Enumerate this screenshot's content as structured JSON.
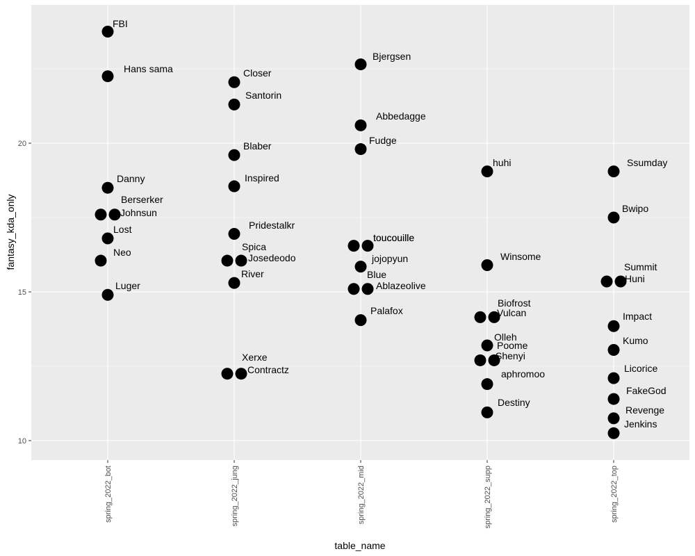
{
  "chart_data": {
    "type": "scatter",
    "xlabel": "table_name",
    "ylabel": "fantasy_kda_only",
    "categories": [
      "spring_2022_bot",
      "spring_2022_jung",
      "spring_2022_mid",
      "spring_2022_supp",
      "spring_2022_top"
    ],
    "yticks": [
      10,
      15,
      20
    ],
    "ylim": [
      9.35,
      24.6
    ],
    "grid": true,
    "background_color": "#ebebeb",
    "grid_color": "#ffffff",
    "point_color": "#000000",
    "series": [
      {
        "category": "spring_2022_bot",
        "points": [
          {
            "label": "FBI",
            "y": 23.75
          },
          {
            "label": "Hans sama",
            "y": 22.25
          },
          {
            "label": "Danny",
            "y": 18.5
          },
          {
            "label": "Berserker",
            "y": 17.6
          },
          {
            "label": "Johnsun",
            "y": 17.6
          },
          {
            "label": "Lost",
            "y": 16.8
          },
          {
            "label": "Neo",
            "y": 16.05
          },
          {
            "label": "Luger",
            "y": 14.9
          }
        ]
      },
      {
        "category": "spring_2022_jung",
        "points": [
          {
            "label": "Closer",
            "y": 22.05
          },
          {
            "label": "Santorin",
            "y": 21.3
          },
          {
            "label": "Blaber",
            "y": 19.6
          },
          {
            "label": "Inspired",
            "y": 18.55
          },
          {
            "label": "Pridestalkr",
            "y": 16.95
          },
          {
            "label": "Spica",
            "y": 16.05
          },
          {
            "label": "Josedeodo",
            "y": 16.05
          },
          {
            "label": "River",
            "y": 15.3
          },
          {
            "label": "Xerxe",
            "y": 12.25
          },
          {
            "label": "Contractz",
            "y": 12.25
          }
        ]
      },
      {
        "category": "spring_2022_mid",
        "points": [
          {
            "label": "Bjergsen",
            "y": 22.65
          },
          {
            "label": "Abbedagge",
            "y": 20.6
          },
          {
            "label": "Fudge",
            "y": 19.8
          },
          {
            "label": "toucouille",
            "y": 16.55
          },
          {
            "label": "toucouille",
            "y": 16.55
          },
          {
            "label": "jojopyun",
            "y": 15.85
          },
          {
            "label": "Blue",
            "y": 15.1
          },
          {
            "label": "Ablazeolive",
            "y": 15.1
          },
          {
            "label": "Palafox",
            "y": 14.05
          }
        ]
      },
      {
        "category": "spring_2022_supp",
        "points": [
          {
            "label": "huhi",
            "y": 19.05
          },
          {
            "label": "Winsome",
            "y": 15.9
          },
          {
            "label": "Biofrost",
            "y": 14.15
          },
          {
            "label": "Vulcan",
            "y": 14.15
          },
          {
            "label": "Olleh",
            "y": 13.2
          },
          {
            "label": "Poome",
            "y": 12.7
          },
          {
            "label": "Shenyi",
            "y": 12.7
          },
          {
            "label": "aphromoo",
            "y": 11.9
          },
          {
            "label": "Destiny",
            "y": 10.95
          }
        ]
      },
      {
        "category": "spring_2022_top",
        "points": [
          {
            "label": "Ssumday",
            "y": 19.05
          },
          {
            "label": "Bwipo",
            "y": 17.5
          },
          {
            "label": "Summit",
            "y": 15.35
          },
          {
            "label": "Huni",
            "y": 15.35
          },
          {
            "label": "Impact",
            "y": 13.85
          },
          {
            "label": "Kumo",
            "y": 13.05
          },
          {
            "label": "Licorice",
            "y": 12.1
          },
          {
            "label": "FakeGod",
            "y": 11.4
          },
          {
            "label": "Revenge",
            "y": 10.75
          },
          {
            "label": "Jenkins",
            "y": 10.25
          }
        ]
      }
    ]
  }
}
